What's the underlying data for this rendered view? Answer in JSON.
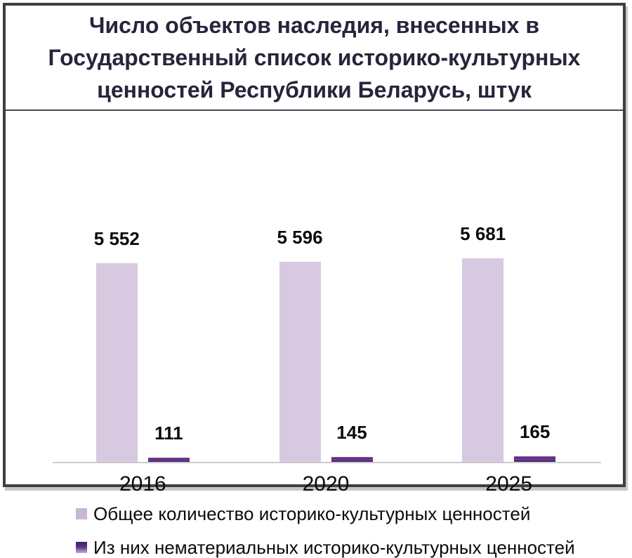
{
  "title": "Число объектов наследия, внесенных в\nГосударственный список историко-культурных\nценностей Республики Беларусь, штук",
  "chart_data": {
    "type": "bar",
    "title": "Число объектов наследия, внесенных в Государственный список историко-культурных ценностей Республики Беларусь, штук",
    "categories": [
      "2016",
      "2020",
      "2025"
    ],
    "series": [
      {
        "key": "total",
        "name": "Общее количество историко-культурных ценностей",
        "values": [
          5552,
          5596,
          5681
        ],
        "labels": [
          "5 552",
          "5 596",
          "5 681"
        ],
        "color": "#d7c9df"
      },
      {
        "key": "intangible",
        "name": "Из них нематериальных историко-культурных ценностей",
        "values": [
          111,
          145,
          165
        ],
        "labels": [
          "111",
          "145",
          "165"
        ],
        "color": "#5a2b80"
      }
    ],
    "xlabel": "",
    "ylabel": "",
    "ylim": [
      0,
      6000
    ],
    "grid": false,
    "value_labels": true,
    "legend_position": "bottom-left"
  },
  "colors": {
    "frame_border": "#3e3d45",
    "title_text": "#26253b",
    "axis_line": "#cbcbce",
    "bar_total": "#d7c9df",
    "bar_intangible": "#5a2b80",
    "label_text": "#0b0b0b"
  }
}
